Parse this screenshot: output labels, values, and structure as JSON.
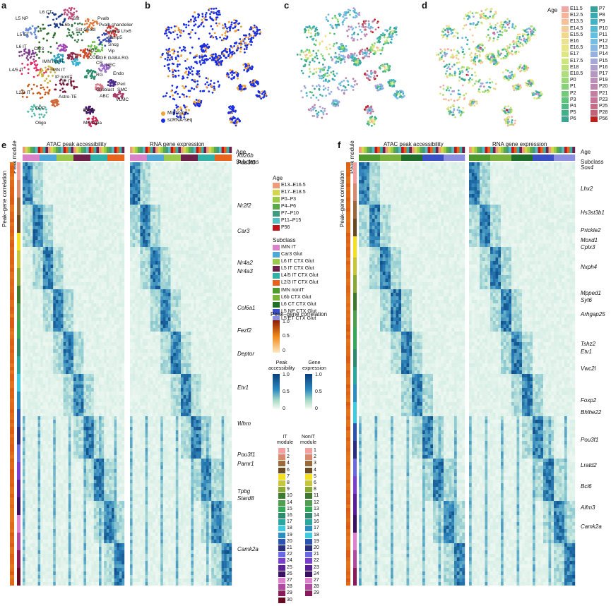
{
  "panels": {
    "a": "a",
    "b": "b",
    "c": "c",
    "d": "d",
    "e": "e",
    "f": "f"
  },
  "umap_a_labels": [
    {
      "t": "L6 CT"
    },
    {
      "t": "L5 NP"
    },
    {
      "t": "Sst"
    },
    {
      "t": "Pvalb"
    },
    {
      "t": "L6b"
    },
    {
      "t": "Pvalb chandelier"
    },
    {
      "t": "L5 ET"
    },
    {
      "t": "Sst Chodl"
    },
    {
      "t": "Lamp5 Lhx6"
    },
    {
      "t": "L6 IT"
    },
    {
      "t": "Car3"
    },
    {
      "t": "Lamp5"
    },
    {
      "t": "Sncg"
    },
    {
      "t": "MGE"
    },
    {
      "t": "CGE"
    },
    {
      "t": "Vip"
    },
    {
      "t": "L4/5 IT"
    },
    {
      "t": "IMN nonIT"
    },
    {
      "t": "CR"
    },
    {
      "t": "MGE GABA RG"
    },
    {
      "t": "IMN IT"
    },
    {
      "t": "IP nonIT"
    },
    {
      "t": "NEC"
    },
    {
      "t": "Endo"
    },
    {
      "t": "IP IT"
    },
    {
      "t": "RG"
    },
    {
      "t": "Peri"
    },
    {
      "t": "L2/3 IT"
    },
    {
      "t": "Astro-TE"
    },
    {
      "t": "Glioblast"
    },
    {
      "t": "SMC"
    },
    {
      "t": "ABC"
    },
    {
      "t": "VLMC"
    },
    {
      "t": "OPC"
    },
    {
      "t": "BAM"
    },
    {
      "t": "Oligo"
    },
    {
      "t": "Microglia"
    }
  ],
  "umap_b_legend": [
    {
      "name": "Multiome",
      "color": "#f0a030"
    },
    {
      "name": "scRNA-seq",
      "color": "#1a2ee0"
    }
  ],
  "age_legend_d": {
    "title": "Age",
    "col1": [
      {
        "n": "E11.5",
        "c": "#f4a6a0"
      },
      {
        "n": "E12.5",
        "c": "#f6b59a"
      },
      {
        "n": "E13.5",
        "c": "#f7c09a"
      },
      {
        "n": "E14.5",
        "c": "#f6cc98"
      },
      {
        "n": "E15.5",
        "c": "#f3d78f"
      },
      {
        "n": "E16",
        "c": "#efe08a"
      },
      {
        "n": "E16.5",
        "c": "#e8e784"
      },
      {
        "n": "E17",
        "c": "#dde880"
      },
      {
        "n": "E17.5",
        "c": "#cfe67c"
      },
      {
        "n": "E18",
        "c": "#bfe27a"
      },
      {
        "n": "E18.5",
        "c": "#aede79"
      },
      {
        "n": "P0",
        "c": "#9bd878"
      },
      {
        "n": "P1",
        "c": "#86d277"
      },
      {
        "n": "P2",
        "c": "#72cb79"
      },
      {
        "n": "P3",
        "c": "#5fc37c"
      },
      {
        "n": "P4",
        "c": "#4fba82"
      },
      {
        "n": "P5",
        "c": "#43b08a"
      },
      {
        "n": "P6",
        "c": "#3ba692"
      }
    ],
    "col2": [
      {
        "n": "P7",
        "c": "#37a09a"
      },
      {
        "n": "P8",
        "c": "#3aa8b0"
      },
      {
        "n": "P9",
        "c": "#43b2c4"
      },
      {
        "n": "P10",
        "c": "#52bad4"
      },
      {
        "n": "P11",
        "c": "#64bede"
      },
      {
        "n": "P12",
        "c": "#76bde3"
      },
      {
        "n": "P13",
        "c": "#87b8e3"
      },
      {
        "n": "P14",
        "c": "#96b1df"
      },
      {
        "n": "P15",
        "c": "#a3a8d8"
      },
      {
        "n": "P16",
        "c": "#ad9fce"
      },
      {
        "n": "P17",
        "c": "#b597c4"
      },
      {
        "n": "P19",
        "c": "#bb8fba"
      },
      {
        "n": "P20",
        "c": "#bf87af"
      },
      {
        "n": "P21",
        "c": "#c27ea3"
      },
      {
        "n": "P23",
        "c": "#c47696"
      },
      {
        "n": "P25",
        "c": "#c46d87"
      },
      {
        "n": "P28",
        "c": "#c26478"
      },
      {
        "n": "P56",
        "c": "#c01d1d"
      }
    ]
  },
  "panel_e": {
    "atac_title": "ATAC peak accessibility",
    "rna_title": "RNA gene expression",
    "age_label": "Age",
    "subclass_label": "Subclass",
    "peak_module": "Peak module",
    "peak_gene_corr": "Peak–gene correlation",
    "genes": [
      "Klf26b",
      "Pou3f3",
      "Nr2f2",
      "Car3",
      "Nr4a2",
      "Nr4a3",
      "Col6a1",
      "Fezf2",
      "Deptor",
      "Etv1",
      "Whrn",
      "Pou3f1",
      "Pamr1",
      "Tpbg",
      "Stard8",
      "Camk2a"
    ],
    "age_legend": {
      "title": "Age",
      "items": [
        {
          "n": "E13–E16.5",
          "c": "#ef9a7a"
        },
        {
          "n": "E17–E18.5",
          "c": "#d6d64a"
        },
        {
          "n": "P0–P3",
          "c": "#9ccc45"
        },
        {
          "n": "P4–P6",
          "c": "#5aa84a"
        },
        {
          "n": "P7–P10",
          "c": "#3f9a7e"
        },
        {
          "n": "P11–P15",
          "c": "#55bdc4"
        },
        {
          "n": "P56",
          "c": "#c0141a"
        }
      ]
    },
    "subclass_legend": {
      "title": "Subclass",
      "items": [
        {
          "n": "IMN IT",
          "c": "#d982c9"
        },
        {
          "n": "Car3 Glut",
          "c": "#4ea9d8"
        },
        {
          "n": "L6 IT CTX Glut",
          "c": "#9cc94a"
        },
        {
          "n": "L5 IT CTX Glut",
          "c": "#6e1f4a"
        },
        {
          "n": "L4/5 IT CTX Glut",
          "c": "#2fb3a8"
        },
        {
          "n": "L2/3 IT CTX Glut",
          "c": "#e8641c"
        }
      ]
    },
    "subclass_legend2": {
      "items": [
        {
          "n": "IMN nonIT",
          "c": "#4e9a2e"
        },
        {
          "n": "L6b CTX Glut",
          "c": "#7bb23a"
        },
        {
          "n": "L6 CT CTX Glut",
          "c": "#1f6e2a"
        },
        {
          "n": "L5 NP CTX Glut",
          "c": "#3a4fc6"
        },
        {
          "n": "L5 ET CTX Glut",
          "c": "#8c8fe0"
        }
      ]
    },
    "pgc_legend": {
      "title": "Peak–gene correlation",
      "ticks": [
        "1.0",
        "0.5",
        "0"
      ]
    },
    "peak_legend": {
      "title1": "Peak",
      "title1b": "accessibility",
      "title2": "Gene",
      "title2b": "expression",
      "ticks": [
        "1.0",
        "0.5",
        "0"
      ]
    },
    "it_module": {
      "title": "IT",
      "title2": "module",
      "items": [
        "1",
        "2",
        "4",
        "6",
        "7",
        "8",
        "9",
        "10",
        "14",
        "15",
        "16",
        "17",
        "18",
        "19",
        "20",
        "21",
        "22",
        "24",
        "25",
        "26",
        "27",
        "28",
        "29",
        "30"
      ],
      "colors": [
        "#f4a0a0",
        "#d98a6e",
        "#9a6a3a",
        "#6a4a20",
        "#f4e020",
        "#c7c53a",
        "#8aa836",
        "#3e7a2e",
        "#4ea050",
        "#36a85a",
        "#2e8a6e",
        "#2aa8a0",
        "#3ecbe0",
        "#2a8ec0",
        "#2a54b0",
        "#2a2e80",
        "#6a6ae0",
        "#7a3ed0",
        "#5a1e9a",
        "#3a1060",
        "#e080d0",
        "#b04aa0",
        "#8a1a5a",
        "#6a0a20"
      ]
    },
    "nonit_module": {
      "title": "NonIT",
      "title2": "module",
      "items": [
        "1",
        "2",
        "3",
        "4",
        "5",
        "6",
        "8",
        "11",
        "12",
        "13",
        "14",
        "16",
        "17",
        "18",
        "19",
        "20",
        "21",
        "22",
        "23",
        "24",
        "27",
        "28",
        "29"
      ],
      "colors": [
        "#f4a0a0",
        "#d98a6e",
        "#9a6a3a",
        "#6a4a20",
        "#f4e020",
        "#c7c53a",
        "#8aa836",
        "#3e7a2e",
        "#4ea050",
        "#36a85a",
        "#2e8a6e",
        "#2aa8a0",
        "#2a8ec0",
        "#3ecbe0",
        "#2a54b0",
        "#2a2e80",
        "#6a6ae0",
        "#7a3ed0",
        "#5a1e9a",
        "#3a1060",
        "#e080d0",
        "#b04aa0",
        "#8a1a5a"
      ]
    }
  },
  "panel_f": {
    "atac_title": "ATAC peak accessibility",
    "rna_title": "RNA gene expression",
    "age_label": "Age",
    "subclass_label": "Subclass",
    "peak_module": "Peak module",
    "peak_gene_corr": "Peak–gene correlation",
    "genes": [
      "Sox4",
      "Lhx2",
      "Hs3st3b1",
      "Prickle2",
      "Moxd1",
      "Cplx3",
      "Nxph4",
      "Mpped1",
      "Syt6",
      "Arhgap25",
      "Tshz2",
      "Etv1",
      "Vwc2l",
      "Foxp2",
      "Bhlhe22",
      "Pou3f1",
      "Lratd2",
      "Bcl6",
      "Aifm3",
      "Camk2a"
    ]
  },
  "colors": {
    "heat_dark": "#0b4f8a",
    "heat_light": "#eef6f6",
    "orange_corr": "#f08a1a"
  }
}
